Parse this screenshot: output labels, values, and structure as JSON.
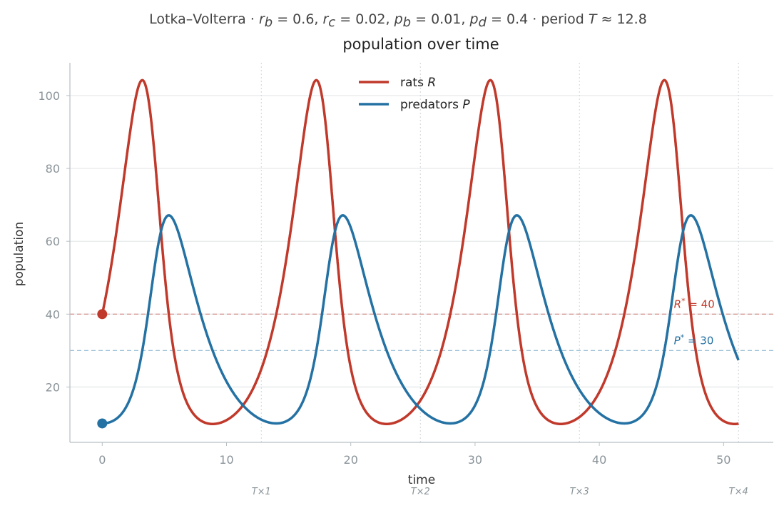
{
  "chart_data": {
    "type": "line",
    "suptitle": {
      "prefix": "Lotka–Volterra  ·  ",
      "rb_label": "r",
      "rb_sub": "b",
      "rb_value": " = 0.6, ",
      "rc_label": "r",
      "rc_sub": "c",
      "rc_value": " = 0.02, ",
      "pb_label": "p",
      "pb_sub": "b",
      "pb_value": " = 0.01, ",
      "pd_label": "p",
      "pd_sub": "d",
      "pd_value": " = 0.4  ·  period ",
      "period_symbol": "T",
      "period_value": " ≈ 12.8"
    },
    "title": "population over time",
    "xlabel": "time",
    "ylabel": "population",
    "xlim": [
      -2.6,
      54
    ],
    "ylim": [
      4.8,
      109
    ],
    "xticks": [
      0,
      10,
      20,
      30,
      40,
      50
    ],
    "yticks": [
      20,
      40,
      60,
      80,
      100
    ],
    "grid": "horizontal",
    "legend_position": "top-center",
    "model": {
      "rb": 0.6,
      "rc": 0.02,
      "pb": 0.01,
      "pd": 0.4,
      "R0": 40,
      "P0": 10,
      "t_end": 51.2
    },
    "series": [
      {
        "name": "rats",
        "symbol": "R",
        "color": "#c0392b",
        "start": {
          "x": 0,
          "y": 40
        }
      },
      {
        "name": "predators",
        "symbol": "P",
        "color": "#2471a3",
        "start": {
          "x": 0,
          "y": 10
        }
      }
    ],
    "equilibria": [
      {
        "symbol": "R",
        "star": "*",
        "value_text": " = 40",
        "value": 40,
        "color": "#c0392b",
        "at_x": 46
      },
      {
        "symbol": "P",
        "star": "*",
        "value_text": " = 30",
        "value": 30,
        "color": "#2471a3",
        "at_x": 46
      }
    ],
    "period_markers": [
      {
        "x": 12.8,
        "label": "T×1"
      },
      {
        "x": 25.6,
        "label": "T×2"
      },
      {
        "x": 38.4,
        "label": "T×3"
      },
      {
        "x": 51.2,
        "label": "T×4"
      }
    ]
  }
}
